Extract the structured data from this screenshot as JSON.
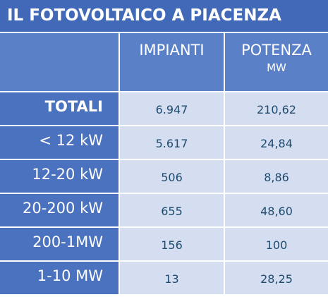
{
  "header": {
    "title": "IL FOTOVOLTAICO A PIACENZA"
  },
  "table": {
    "columns": [
      {
        "label": "IMPIANTI"
      },
      {
        "label": "POTENZA",
        "unit": "MW"
      }
    ],
    "rows": [
      [
        "TOTALI",
        "6.947",
        "210,62"
      ],
      [
        "< 12 kW",
        "5.617",
        "24,84"
      ],
      [
        "12-20 kW",
        "506",
        "8,86"
      ],
      [
        "20-200 kW",
        "655",
        "48,60"
      ],
      [
        "200-1MW",
        "156",
        "100"
      ],
      [
        "1-10 MW",
        "13",
        "28,25"
      ]
    ]
  }
}
